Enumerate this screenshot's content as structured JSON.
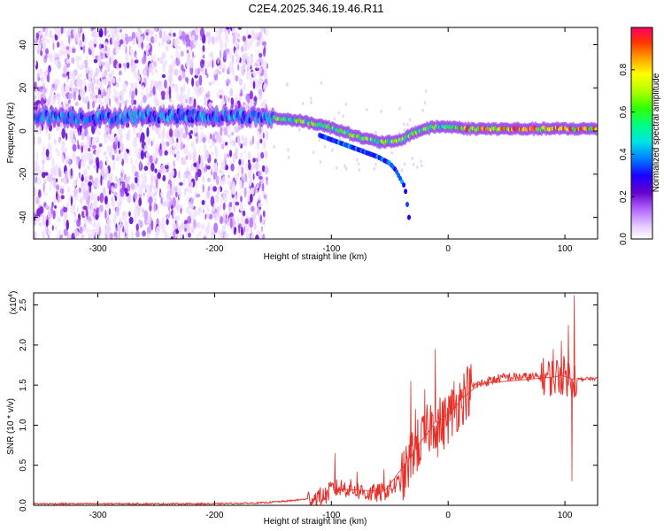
{
  "figure": {
    "title": "C2E4.2025.346.19.46.R11"
  },
  "chart_data": [
    {
      "type": "heatmap",
      "xlabel": "Height of straight line (km)",
      "ylabel": "Frequency (Hz)",
      "xlim": [
        -355,
        128
      ],
      "ylim": [
        -50,
        48
      ],
      "xticks": [
        -300,
        -200,
        -100,
        0,
        100
      ],
      "xtick_labels": [
        "-300",
        "-200",
        "-100",
        "0",
        "100"
      ],
      "yticks": [
        -40,
        -20,
        0,
        20,
        40
      ],
      "ytick_labels": [
        "-40",
        "-20",
        "0",
        "20",
        "40"
      ],
      "colorbar": {
        "label": "Normalized spectral amplitude",
        "range": [
          0,
          1
        ],
        "ticks": [
          0.0,
          0.2,
          0.4,
          0.6,
          0.8
        ],
        "tick_labels": [
          "0.0",
          "0.2",
          "0.4",
          "0.6",
          "0.8"
        ],
        "colormap": [
          "#ffffff",
          "#e6ccff",
          "#b366ff",
          "#6600cc",
          "#1a00ff",
          "#0080ff",
          "#00e5e5",
          "#00ff80",
          "#33ff00",
          "#b3ff00",
          "#ffff00",
          "#ff9900",
          "#ff3300",
          "#ff0066"
        ]
      },
      "ridge": {
        "x": [
          -340,
          -300,
          -260,
          -220,
          -180,
          -150,
          -130,
          -110,
          -90,
          -75,
          -60,
          -50,
          -45,
          -40,
          -30,
          -20,
          -10,
          0,
          20,
          60,
          100,
          128
        ],
        "y": [
          7,
          6,
          7,
          7,
          7,
          6,
          5,
          3,
          0,
          -3,
          -5,
          -5,
          -5,
          -4,
          -1,
          1,
          2,
          2,
          1,
          1,
          1,
          1
        ]
      },
      "branch": {
        "x": [
          -110,
          -90,
          -75,
          -60,
          -50,
          -45,
          -37,
          -33
        ],
        "y": [
          -2,
          -6,
          -9,
          -12,
          -15,
          -18,
          -26,
          -42
        ]
      },
      "noise_region_x": [
        -355,
        -155
      ]
    },
    {
      "type": "line",
      "xlabel": "Height of straight line (km)",
      "ylabel": "SNR (10 * v/v)",
      "y_multiplier_label": "(x10",
      "y_multiplier_exp": "4",
      "y_multiplier_close": ")",
      "xlim": [
        -355,
        128
      ],
      "ylim": [
        0,
        2.65
      ],
      "xticks": [
        -300,
        -200,
        -100,
        0,
        100
      ],
      "xtick_labels": [
        "-300",
        "-200",
        "-100",
        "0",
        "100"
      ],
      "yticks": [
        0.0,
        0.5,
        1.0,
        1.5,
        2.0,
        2.5
      ],
      "ytick_labels": [
        "0.0",
        "0.5",
        "1.0",
        "1.5",
        "2.0",
        "2.5"
      ],
      "line_color": "#e8302a",
      "series": [
        {
          "x": [
            -355,
            -300,
            -250,
            -200,
            -160,
            -140,
            -120,
            -105,
            -100,
            -90,
            -80,
            -70,
            -60,
            -50,
            -40,
            -35,
            -30,
            -25,
            -20,
            -15,
            -10,
            -5,
            0,
            5,
            10,
            15,
            20,
            30,
            40,
            50,
            60,
            70,
            80,
            90,
            95,
            100,
            105,
            107,
            110,
            120,
            128
          ],
          "y": [
            0.02,
            0.02,
            0.02,
            0.02,
            0.03,
            0.05,
            0.08,
            0.12,
            0.2,
            0.22,
            0.2,
            0.15,
            0.15,
            0.2,
            0.3,
            0.45,
            0.7,
            0.75,
            0.85,
            1.0,
            1.05,
            1.0,
            1.1,
            1.2,
            1.3,
            1.4,
            1.48,
            1.53,
            1.57,
            1.6,
            1.6,
            1.6,
            1.6,
            1.6,
            1.62,
            1.62,
            1.58,
            1.57,
            1.57,
            1.58,
            1.58
          ]
        }
      ],
      "spikes": [
        {
          "x": -97,
          "y": 0.65
        },
        {
          "x": -78,
          "y": 0.42
        },
        {
          "x": -55,
          "y": 0.45
        },
        {
          "x": -32,
          "y": 1.55
        },
        {
          "x": -28,
          "y": 1.2
        },
        {
          "x": -20,
          "y": 1.45
        },
        {
          "x": -11,
          "y": 1.95
        },
        {
          "x": -9,
          "y": 0.6
        },
        {
          "x": 5,
          "y": 1.55
        },
        {
          "x": 12,
          "y": 1.45
        },
        {
          "x": 28,
          "y": 1.48
        },
        {
          "x": 90,
          "y": 1.95
        },
        {
          "x": 97,
          "y": 2.05
        },
        {
          "x": 103,
          "y": 2.25
        },
        {
          "x": 106,
          "y": 0.3
        },
        {
          "x": 108,
          "y": 2.62
        }
      ]
    }
  ]
}
